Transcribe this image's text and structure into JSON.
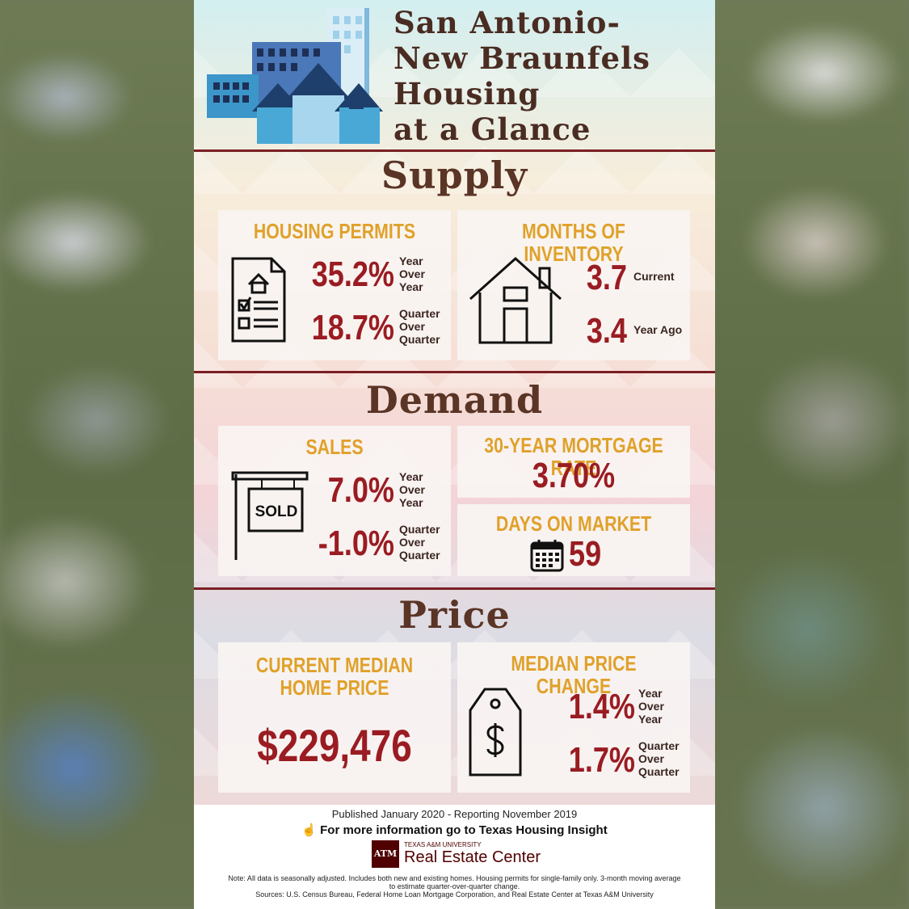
{
  "header": {
    "title_lines": [
      "San Antonio-",
      "New Braunfels",
      "Housing",
      "at a Glance"
    ]
  },
  "supply": {
    "title": "Supply",
    "permits": {
      "title": "HOUSING PERMITS",
      "yoy_value": "35.2%",
      "yoy_label": [
        "Year",
        "Over",
        "Year"
      ],
      "qoq_value": "18.7%",
      "qoq_label": [
        "Quarter",
        "Over",
        "Quarter"
      ]
    },
    "inventory": {
      "title": "MONTHS OF INVENTORY",
      "current_value": "3.7",
      "current_label": "Current",
      "ago_value": "3.4",
      "ago_label": "Year Ago"
    }
  },
  "demand": {
    "title": "Demand",
    "sales": {
      "title": "SALES",
      "sign_text": "SOLD",
      "yoy_value": "7.0%",
      "yoy_label": [
        "Year",
        "Over",
        "Year"
      ],
      "qoq_value": "-1.0%",
      "qoq_label": [
        "Quarter",
        "Over",
        "Quarter"
      ]
    },
    "mortgage": {
      "title": "30-YEAR MORTGAGE RATE",
      "value": "3.70%"
    },
    "days": {
      "title": "DAYS ON MARKET",
      "value": "59"
    }
  },
  "price": {
    "title": "Price",
    "median": {
      "title_lines": [
        "CURRENT MEDIAN",
        "HOME PRICE"
      ],
      "value": "$229,476"
    },
    "change": {
      "title": "MEDIAN PRICE CHANGE",
      "yoy_value": "1.4%",
      "yoy_label": [
        "Year",
        "Over",
        "Year"
      ],
      "qoq_value": "1.7%",
      "qoq_label": [
        "Quarter",
        "Over",
        "Quarter"
      ]
    }
  },
  "footer": {
    "published": "Published January 2020 - Reporting November 2019",
    "more_info": "For more information go to Texas Housing Insight",
    "logo_small": "TEXAS A&M UNIVERSITY",
    "logo_big": "Real Estate Center",
    "logo_mark": "ATM",
    "note": "Note: All data is seasonally adjusted. Includes both new and existing homes. Housing permits for single-family only. 3-month moving average to estimate quarter-over-quarter change.",
    "sources": "Sources: U.S. Census Bureau, Federal Home Loan Mortgage Corporation, and Real Estate Center at Texas A&M University"
  },
  "colors": {
    "accent_gold": "#e0a12a",
    "value_red": "#9a1c22",
    "rule_maroon": "#7a1f24",
    "heading_brown": "#5a3425",
    "logo_maroon": "#500000"
  }
}
